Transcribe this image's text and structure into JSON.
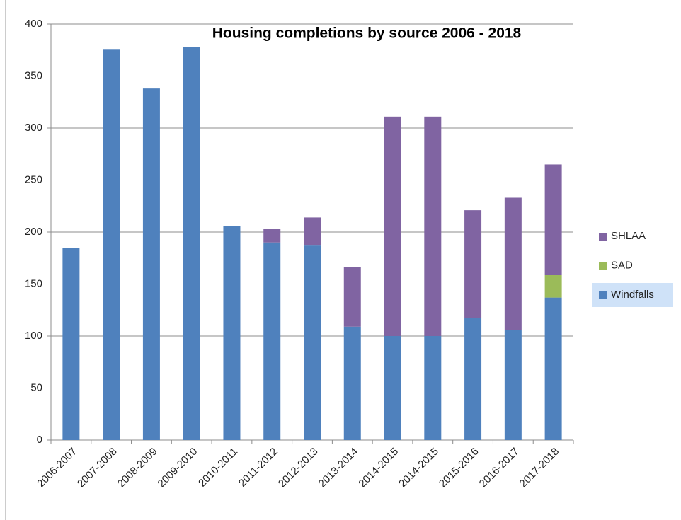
{
  "chart_data": {
    "type": "stacked_bar",
    "title": "Housing completions by source 2006 - 2018",
    "categories": [
      "2006-2007",
      "2007-2008",
      "2008-2009",
      "2009-2010",
      "2010-2011",
      "2011-2012",
      "2012-2013",
      "2013-2014",
      "2014-2015",
      "2014-2015",
      "2015-2016",
      "2016-2017",
      "2017-2018"
    ],
    "series": [
      {
        "name": "Windfalls",
        "color": "#4f81bd",
        "values": [
          185,
          376,
          338,
          378,
          206,
          190,
          187,
          109,
          100,
          100,
          117,
          106,
          137
        ]
      },
      {
        "name": "SAD",
        "color": "#9bbb59",
        "values": [
          0,
          0,
          0,
          0,
          0,
          0,
          0,
          0,
          0,
          0,
          0,
          0,
          22
        ]
      },
      {
        "name": "SHLAA",
        "color": "#8064a2",
        "values": [
          0,
          0,
          0,
          0,
          0,
          13,
          27,
          57,
          211,
          211,
          104,
          127,
          106
        ]
      }
    ],
    "ylim": [
      0,
      400
    ],
    "yticks": [
      0,
      50,
      100,
      150,
      200,
      250,
      300,
      350,
      400
    ],
    "grid": true,
    "legend": "right"
  }
}
